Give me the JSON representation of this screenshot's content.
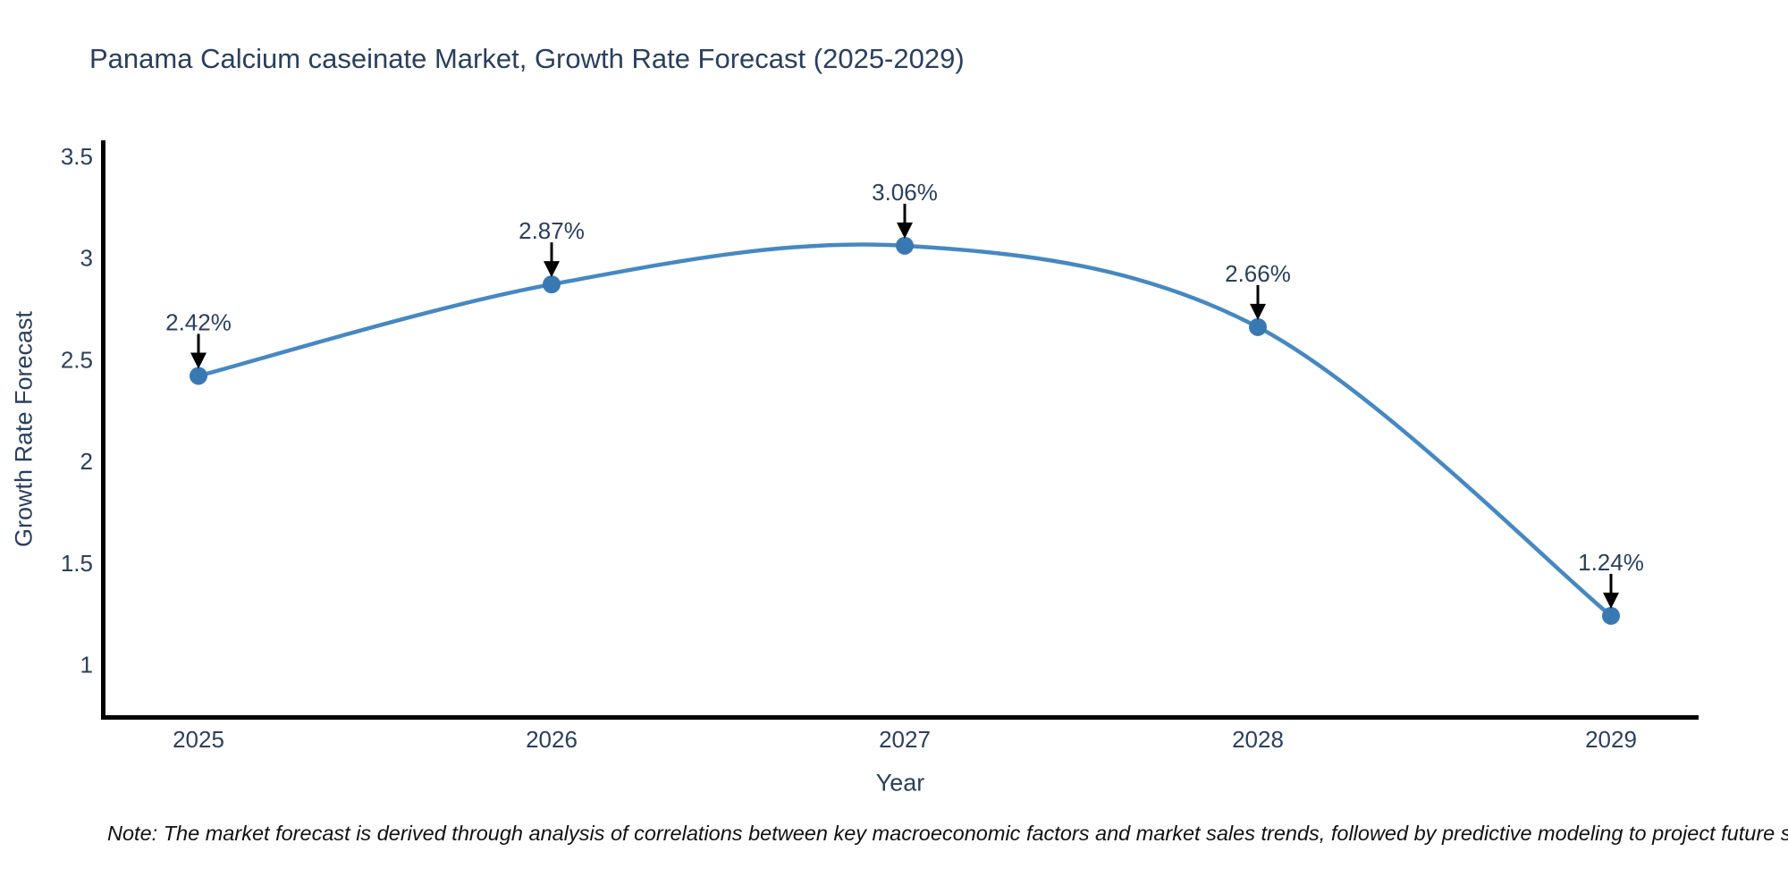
{
  "title": "Panama Calcium caseinate Market, Growth Rate Forecast (2025-2029)",
  "chart_data": {
    "type": "line",
    "title": "Panama Calcium caseinate Market, Growth Rate Forecast (2025-2029)",
    "x": [
      "2025",
      "2026",
      "2027",
      "2028",
      "2029"
    ],
    "series": [
      {
        "name": "Growth Rate Forecast",
        "values": [
          2.42,
          2.87,
          3.06,
          2.66,
          1.24
        ]
      }
    ],
    "point_labels": [
      "2.42%",
      "2.87%",
      "3.06%",
      "2.66%",
      "1.24%"
    ],
    "xlabel": "Year",
    "ylabel": "Growth Rate Forecast",
    "yticks": [
      3.5,
      3,
      2.5,
      2,
      1.5,
      1
    ],
    "ytick_labels": [
      "3.5",
      "3",
      "2.5",
      "2",
      "1.5",
      "1"
    ],
    "ylim": [
      0.73,
      3.58
    ],
    "grid": false,
    "legend": "none",
    "line_shape": "spline",
    "annotation_style": "black downward arrow from each value label to its marker",
    "colors": {
      "line": "#4688c2",
      "marker": "#3879b4",
      "axis": "#000000",
      "text": "#2a3f5f",
      "arrow": "#000000",
      "note_text": "#111111"
    }
  },
  "note": "Note: The market forecast is derived through analysis of correlations between key macroeconomic factors and market sales trends, followed by predictive modeling to project future sales"
}
